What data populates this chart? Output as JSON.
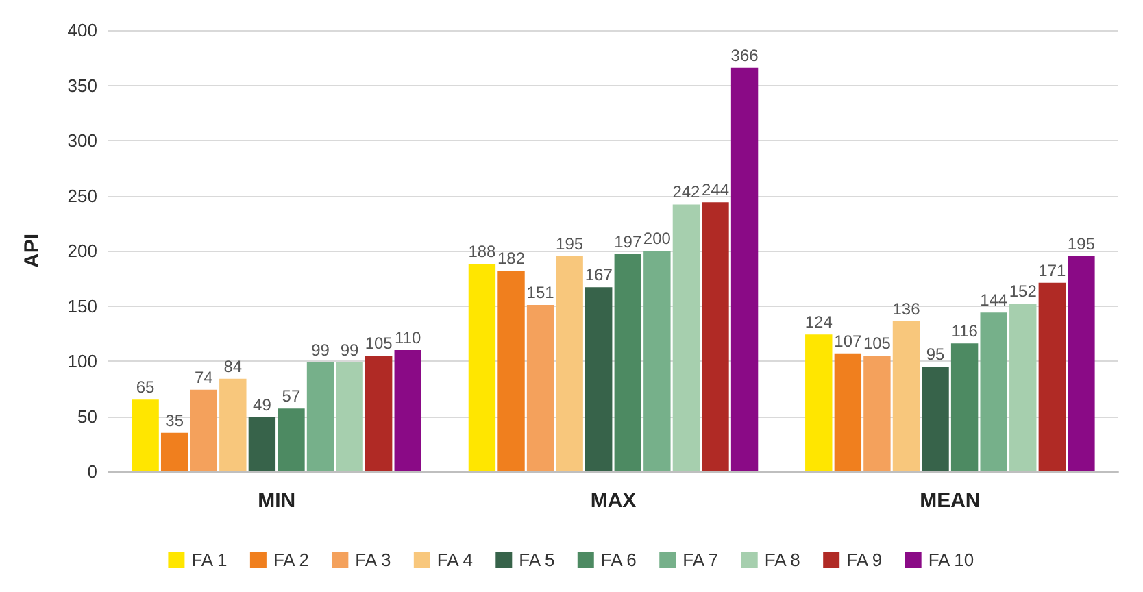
{
  "chart_data": {
    "type": "bar",
    "ylabel": "API",
    "categories": [
      "MIN",
      "MAX",
      "MEAN"
    ],
    "series": [
      {
        "name": "FA 1",
        "color": "#ffe600",
        "values": [
          65,
          188,
          124
        ]
      },
      {
        "name": "FA 2",
        "color": "#f07f1e",
        "values": [
          35,
          182,
          107
        ]
      },
      {
        "name": "FA 3",
        "color": "#f4a15c",
        "values": [
          74,
          151,
          105
        ]
      },
      {
        "name": "FA 4",
        "color": "#f8c77c",
        "values": [
          84,
          195,
          136
        ]
      },
      {
        "name": "FA 5",
        "color": "#37634a",
        "values": [
          49,
          167,
          95
        ]
      },
      {
        "name": "FA 6",
        "color": "#4d8a62",
        "values": [
          57,
          197,
          116
        ]
      },
      {
        "name": "FA 7",
        "color": "#76b08a",
        "values": [
          99,
          200,
          144
        ]
      },
      {
        "name": "FA 8",
        "color": "#a6cfae",
        "values": [
          99,
          242,
          152
        ]
      },
      {
        "name": "FA 9",
        "color": "#b02a25",
        "values": [
          105,
          244,
          171
        ]
      },
      {
        "name": "FA 10",
        "color": "#8a0a86",
        "values": [
          110,
          366,
          195
        ]
      }
    ],
    "ylim": [
      0,
      400
    ],
    "yticks": [
      0,
      50,
      100,
      150,
      200,
      250,
      300,
      350,
      400
    ],
    "grid": "y",
    "legend": "bottom",
    "data_labels": true
  }
}
